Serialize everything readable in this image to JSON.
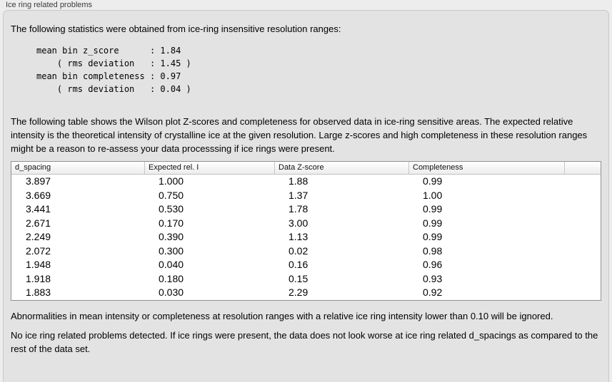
{
  "window": {
    "title": "Ice ring related problems"
  },
  "panel": {
    "intro": "The following statistics were obtained from ice-ring insensitive resolution ranges:",
    "stats_block": "mean bin z_score      : 1.84\n    ( rms deviation   : 1.45 )\nmean bin completeness : 0.97\n    ( rms deviation   : 0.04 )",
    "stats": {
      "mean_bin_z_score": "1.84",
      "z_score_rms_deviation": "1.45",
      "mean_bin_completeness": "0.97",
      "completeness_rms_deviation": "0.04"
    },
    "table_description": "The following table shows the Wilson plot Z-scores and completeness for observed data in ice-ring sensitive areas. The expected relative intensity is the theoretical intensity of crystalline ice at the given resolution. Large z-scores and high completeness in these resolution ranges might be a reason to re-assess your data processsing if ice rings were present.",
    "table": {
      "columns": [
        "d_spacing",
        "Expected rel. I",
        "Data Z-score",
        "Completeness"
      ],
      "rows": [
        [
          "3.897",
          "1.000",
          "1.88",
          "0.99"
        ],
        [
          "3.669",
          "0.750",
          "1.37",
          "1.00"
        ],
        [
          "3.441",
          "0.530",
          "1.78",
          "0.99"
        ],
        [
          "2.671",
          "0.170",
          "3.00",
          "0.99"
        ],
        [
          "2.249",
          "0.390",
          "1.13",
          "0.99"
        ],
        [
          "2.072",
          "0.300",
          "0.02",
          "0.98"
        ],
        [
          "1.948",
          "0.040",
          "0.16",
          "0.96"
        ],
        [
          "1.918",
          "0.180",
          "0.15",
          "0.93"
        ],
        [
          "1.883",
          "0.030",
          "2.29",
          "0.92"
        ]
      ]
    },
    "ignore_note": "Abnormalities in mean intensity or completeness at resolution ranges with a relative ice ring intensity lower than 0.10 will be ignored.",
    "conclusion": "No ice ring related problems detected. If ice rings were present, the data does not look worse at ice ring related d_spacings as compared to the rest of the data set."
  },
  "colors": {
    "page_bg": "#ededed",
    "panel_bg": "#e3e3e3",
    "panel_border": "#c8c8c8",
    "table_bg": "#ffffff",
    "table_border": "#919191",
    "header_separator": "#c6c6c6",
    "text": "#000000"
  }
}
